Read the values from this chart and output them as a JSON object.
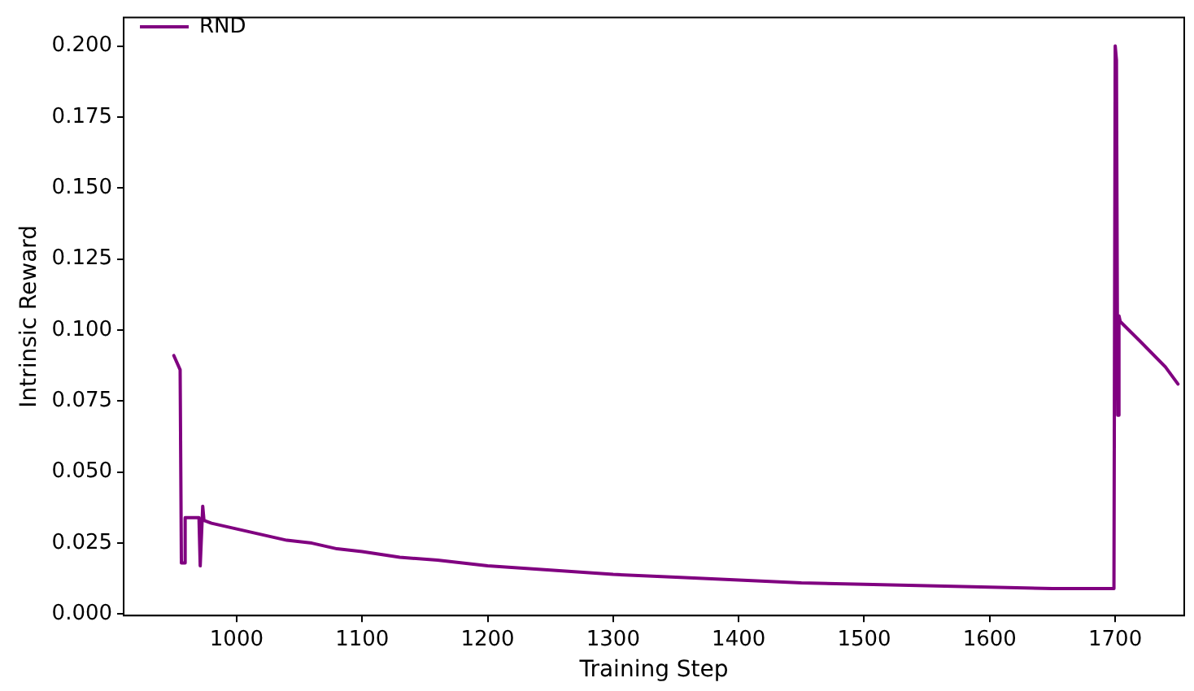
{
  "chart_data": {
    "type": "line",
    "xlabel": "Training Step",
    "ylabel": "Intrinsic Reward",
    "legend": "top left",
    "grid": false,
    "marker": "none",
    "line_style": "solid",
    "xlim": [
      910,
      1755
    ],
    "xticks": [
      1000,
      1100,
      1200,
      1300,
      1400,
      1500,
      1600,
      1700
    ],
    "ylim": [
      -0.0005,
      0.21
    ],
    "yticks": [
      {
        "value": 0,
        "label": "0.000"
      },
      {
        "value": 0.025,
        "label": "0.025"
      },
      {
        "value": 0.05,
        "label": "0.050"
      },
      {
        "value": 0.075,
        "label": "0.075"
      },
      {
        "value": 0.1,
        "label": "0.100"
      },
      {
        "value": 0.125,
        "label": "0.125"
      },
      {
        "value": 0.15,
        "label": "0.150"
      },
      {
        "value": 0.175,
        "label": "0.175"
      },
      {
        "value": 0.2,
        "label": "0.200"
      }
    ],
    "series": [
      {
        "name": "RND",
        "color": "#800080",
        "x": [
          950,
          954,
          955,
          956,
          958,
          959,
          966,
          970,
          971,
          972,
          973,
          974,
          980,
          990,
          1000,
          1020,
          1040,
          1060,
          1080,
          1100,
          1130,
          1160,
          1200,
          1250,
          1300,
          1350,
          1400,
          1450,
          1500,
          1550,
          1600,
          1650,
          1690,
          1698,
          1699,
          1700,
          1701,
          1702,
          1703,
          1704,
          1720,
          1740,
          1750
        ],
        "values": [
          0.091,
          0.087,
          0.086,
          0.018,
          0.018,
          0.034,
          0.034,
          0.034,
          0.017,
          0.017,
          0.038,
          0.033,
          0.032,
          0.031,
          0.03,
          0.028,
          0.026,
          0.025,
          0.023,
          0.022,
          0.02,
          0.019,
          0.017,
          0.0155,
          0.014,
          0.013,
          0.012,
          0.011,
          0.0105,
          0.01,
          0.0095,
          0.009,
          0.009,
          0.009,
          0.01,
          0.2,
          0.195,
          0.07,
          0.105,
          0.103,
          0.096,
          0.087,
          0.081
        ]
      }
    ]
  }
}
